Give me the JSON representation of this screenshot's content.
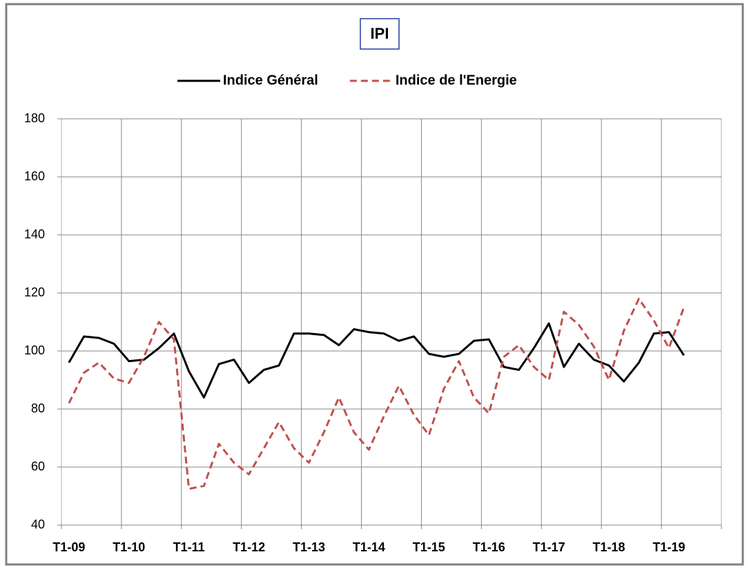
{
  "chart_data": {
    "type": "line",
    "title": "IPI",
    "categories": [
      "T1-09",
      null,
      null,
      null,
      "T1-10",
      null,
      null,
      null,
      "T1-11",
      null,
      null,
      null,
      "T1-12",
      null,
      null,
      null,
      "T1-13",
      null,
      null,
      null,
      "T1-14",
      null,
      null,
      null,
      "T1-15",
      null,
      null,
      null,
      "T1-16",
      null,
      null,
      null,
      "T1-17",
      null,
      null,
      null,
      "T1-18",
      null,
      null,
      null,
      "T1-19",
      null,
      null,
      null
    ],
    "series": [
      {
        "name": "Indice Général",
        "color": "#000000",
        "dash": false,
        "values": [
          96,
          105,
          104.5,
          102.5,
          96.5,
          97,
          101,
          106,
          93,
          84,
          95.5,
          97,
          89,
          93.5,
          95,
          106,
          106,
          105.5,
          102,
          107.5,
          106.5,
          106,
          103.5,
          105,
          99,
          98,
          99,
          103.5,
          104,
          94.5,
          93.5,
          101,
          109.5,
          94.5,
          102.5,
          97,
          95,
          89.5,
          96,
          106,
          106.5,
          98.5,
          null,
          null
        ]
      },
      {
        "name": "Indice de l'Energie",
        "color": "#c0504d",
        "dash": true,
        "values": [
          82,
          92.5,
          96,
          90.5,
          89,
          98,
          110,
          104,
          52.5,
          53.5,
          68,
          61.5,
          57.5,
          66.5,
          75.5,
          66.5,
          61.5,
          72,
          84,
          72,
          66,
          77.5,
          88,
          78,
          71,
          87,
          96.5,
          84,
          78.5,
          98,
          102,
          94.5,
          90,
          113.5,
          109,
          101.5,
          90,
          107,
          118,
          110.5,
          101,
          115,
          null,
          null
        ]
      }
    ],
    "ylim": [
      40,
      180
    ],
    "yticks": [
      40,
      60,
      80,
      100,
      120,
      140,
      160,
      180
    ],
    "grid": true,
    "legend": "top"
  }
}
